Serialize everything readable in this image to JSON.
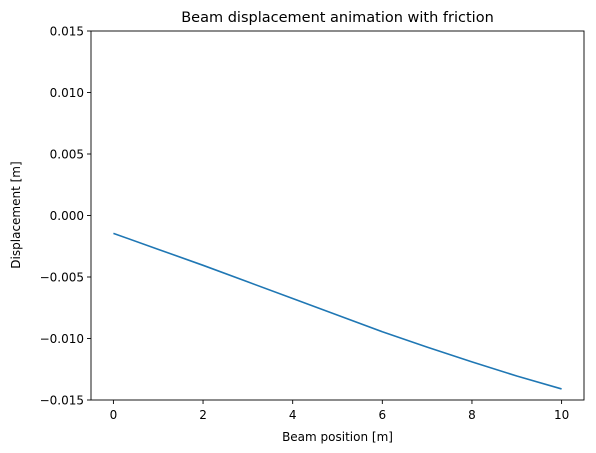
{
  "chart_data": {
    "type": "line",
    "title": "Beam displacement animation with friction",
    "xlabel": "Beam position [m]",
    "ylabel": "Displacement [m]",
    "xlim": [
      -0.5,
      10.5
    ],
    "ylim": [
      -0.015,
      0.015
    ],
    "x_ticks": [
      0,
      2,
      4,
      6,
      8,
      10
    ],
    "x_tick_labels": [
      "0",
      "2",
      "4",
      "6",
      "8",
      "10"
    ],
    "y_ticks": [
      0.015,
      0.01,
      0.005,
      0.0,
      -0.005,
      -0.01,
      -0.015
    ],
    "y_tick_labels": [
      "0.015",
      "0.010",
      "0.005",
      "0.000",
      "−0.005",
      "−0.010",
      "−0.015"
    ],
    "grid": false,
    "series": [
      {
        "color": "#1f77b4",
        "x": [
          0,
          1,
          2,
          3,
          4,
          5,
          6,
          7,
          8,
          9,
          10
        ],
        "y": [
          -0.00145,
          -0.00275,
          -0.00405,
          -0.0054,
          -0.00675,
          -0.0081,
          -0.00945,
          -0.0107,
          -0.0119,
          -0.01305,
          -0.0141
        ]
      }
    ]
  }
}
